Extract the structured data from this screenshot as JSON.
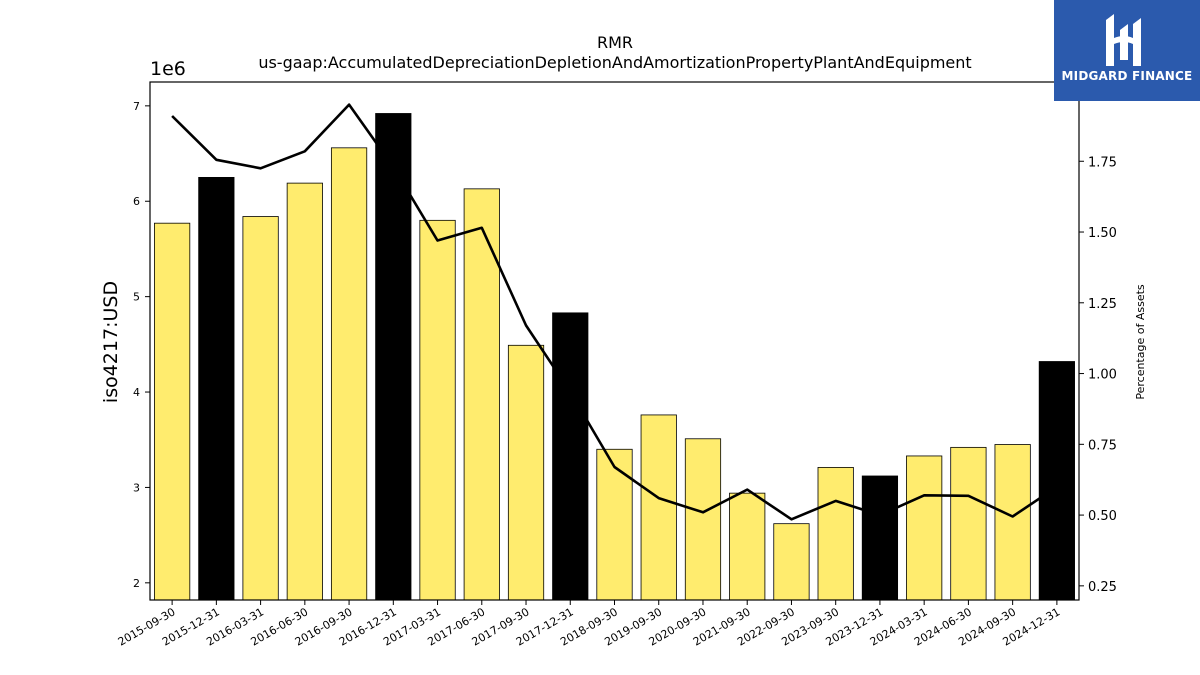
{
  "chart_data": {
    "type": "bar",
    "title": "RMR",
    "subtitle": "us-gaap:AccumulatedDepreciationDepletionAndAmortizationPropertyPlantAndEquipment",
    "ylabel": "iso4217:USD",
    "y2label": "Percentage of Assets",
    "offset_label": "1e6",
    "ylim": [
      1.82,
      7.25
    ],
    "y2lim": [
      0.2,
      2.03
    ],
    "yticks": [
      "2",
      "3",
      "4",
      "5",
      "6",
      "7"
    ],
    "y2ticks": [
      "0.25",
      "0.50",
      "0.75",
      "1.00",
      "1.25",
      "1.50",
      "1.75"
    ],
    "categories": [
      "2015-09-30",
      "2015-12-31",
      "2016-03-31",
      "2016-06-30",
      "2016-09-30",
      "2016-12-31",
      "2017-03-31",
      "2017-06-30",
      "2017-09-30",
      "2017-12-31",
      "2018-09-30",
      "2019-09-30",
      "2020-09-30",
      "2021-09-30",
      "2022-09-30",
      "2023-09-30",
      "2023-12-31",
      "2024-03-31",
      "2024-06-30",
      "2024-09-30",
      "2024-12-31"
    ],
    "series": [
      {
        "type": "bar",
        "values": [
          5770000,
          6250000,
          5840000,
          6190000,
          6560000,
          6920000,
          5800000,
          6130000,
          4490000,
          4830000,
          3400000,
          3760000,
          3510000,
          2940000,
          2620000,
          3210000,
          3120000,
          3330000,
          3420000,
          3450000,
          4320000
        ],
        "highlight": [
          false,
          true,
          false,
          false,
          false,
          true,
          false,
          false,
          false,
          true,
          false,
          false,
          false,
          false,
          false,
          false,
          true,
          false,
          false,
          false,
          true
        ]
      },
      {
        "type": "line",
        "axis": "right",
        "values": [
          1.91,
          1.755,
          1.725,
          1.785,
          1.95,
          1.73,
          1.47,
          1.515,
          1.17,
          0.935,
          0.67,
          0.56,
          0.51,
          0.59,
          0.485,
          0.55,
          0.5,
          0.57,
          0.568,
          0.495,
          0.6
        ]
      }
    ],
    "colors": {
      "bar": "#ffec6e",
      "bar_highlight": "#000000",
      "line": "#000000"
    },
    "grid": false
  },
  "logo": {
    "text": "MIDGARD FINANCE",
    "bg": "#2b5aad"
  }
}
